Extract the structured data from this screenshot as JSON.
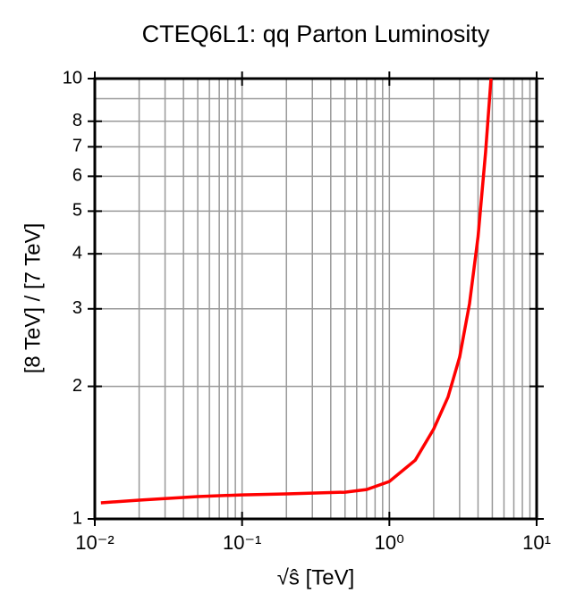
{
  "chart_data": {
    "type": "line",
    "title": "CTEQ6L1: qq Parton Luminosity",
    "x_label": "√ŝ [TeV]",
    "y_label": "[8 TeV] / [7 TeV]",
    "x_log": true,
    "y_log": true,
    "grid": true,
    "xlim": [
      0.01,
      10
    ],
    "ylim": [
      1,
      10
    ],
    "xticks": [
      {
        "value": 0.01,
        "label": "10⁻²"
      },
      {
        "value": 0.1,
        "label": "10⁻¹"
      },
      {
        "value": 1,
        "label": "10⁰"
      },
      {
        "value": 10,
        "label": "10¹"
      }
    ],
    "yticks": [
      1,
      2,
      3,
      4,
      5,
      6,
      7,
      8,
      10
    ],
    "xminor": [
      0.02,
      0.03,
      0.04,
      0.05,
      0.06,
      0.07,
      0.08,
      0.09,
      0.2,
      0.3,
      0.4,
      0.5,
      0.6,
      0.7,
      0.8,
      0.9,
      2,
      3,
      4,
      5,
      6,
      7,
      8,
      9
    ],
    "yminor": [
      9
    ],
    "x": [
      0.011,
      0.02,
      0.05,
      0.1,
      0.2,
      0.5,
      0.7,
      1.0,
      1.5,
      2,
      2.5,
      3,
      3.5,
      4,
      4.5,
      4.9
    ],
    "series": [
      {
        "color": "#ff0000",
        "values": [
          1.088,
          1.103,
          1.124,
          1.134,
          1.14,
          1.15,
          1.166,
          1.216,
          1.36,
          1.6,
          1.89,
          2.33,
          3.08,
          4.37,
          6.8,
          10
        ]
      }
    ]
  }
}
